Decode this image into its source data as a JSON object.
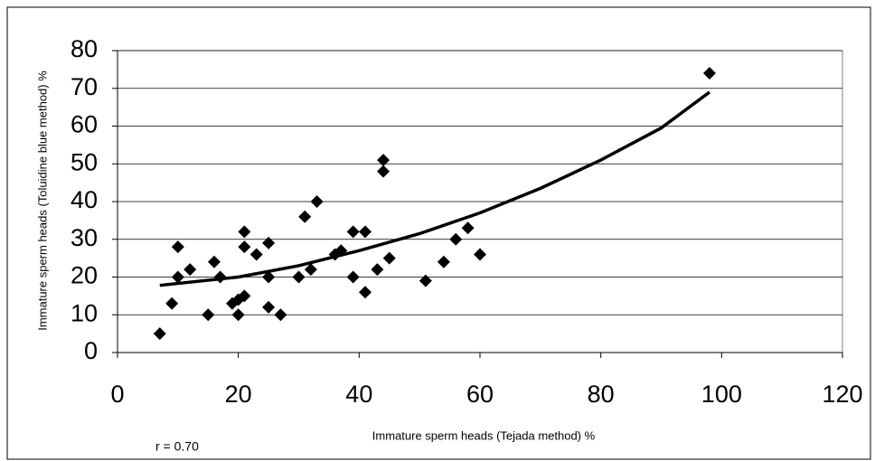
{
  "chart_data": {
    "type": "scatter",
    "xlabel": "Immature sperm heads (Tejada method) %",
    "ylabel": "Immature sperm heads (Toluidine blue method) %",
    "annotation": "r = 0.70",
    "color": "#000000",
    "x": [
      7,
      9,
      10,
      10,
      12,
      15,
      16,
      17,
      19,
      20,
      20,
      21,
      21,
      21,
      23,
      25,
      25,
      25,
      27,
      30,
      31,
      32,
      33,
      36,
      37,
      39,
      39,
      41,
      41,
      43,
      44,
      44,
      45,
      51,
      54,
      56,
      58,
      60,
      98
    ],
    "values": [
      5,
      13,
      28,
      20,
      22,
      10,
      24,
      20,
      13,
      10,
      14,
      15,
      32,
      28,
      26,
      29,
      20,
      12,
      10,
      20,
      36,
      22,
      40,
      26,
      27,
      32,
      20,
      32,
      16,
      22,
      51,
      48,
      25,
      19,
      24,
      30,
      33,
      26,
      74
    ],
    "trendline": {
      "x": [
        7,
        20,
        30,
        40,
        50,
        60,
        70,
        80,
        90,
        98
      ],
      "values": [
        17.8,
        20,
        23,
        27,
        31.5,
        37,
        43.5,
        51,
        59.5,
        69
      ]
    },
    "xlim": [
      0,
      120
    ],
    "xticks": [
      0,
      20,
      40,
      60,
      80,
      100,
      120
    ],
    "ylim": [
      0,
      80
    ],
    "yticks": [
      0,
      10,
      20,
      30,
      40,
      50,
      60,
      70,
      80
    ],
    "grid": true
  }
}
